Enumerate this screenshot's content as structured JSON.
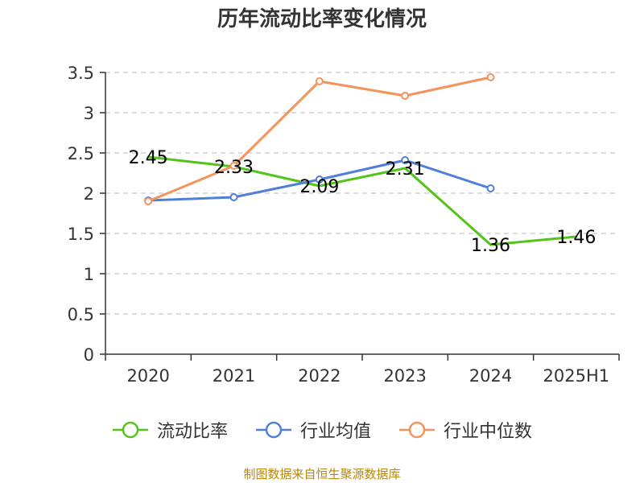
{
  "chart_data": {
    "type": "line",
    "title": "历年流动比率变化情况",
    "categories": [
      "2020",
      "2021",
      "2022",
      "2023",
      "2024",
      "2025H1"
    ],
    "ylim": [
      0,
      3.5
    ],
    "yticks": [
      "0",
      "0.5",
      "1",
      "1.5",
      "2",
      "2.5",
      "3",
      "3.5"
    ],
    "ytick_values": [
      0,
      0.5,
      1,
      1.5,
      2,
      2.5,
      3,
      3.5
    ],
    "grid": true,
    "legend_position": "bottom",
    "series": [
      {
        "name": "流动比率",
        "color": "#52c41a",
        "values": [
          2.45,
          2.33,
          2.09,
          2.31,
          1.36,
          1.46
        ],
        "labels": [
          "2.45",
          "2.33",
          "2.09",
          "2.31",
          "1.36",
          "1.46"
        ],
        "show_markers": false
      },
      {
        "name": "行业均值",
        "color": "#4f7fdb",
        "values": [
          1.91,
          1.95,
          2.17,
          2.41,
          2.06,
          null
        ],
        "show_markers": true
      },
      {
        "name": "行业中位数",
        "color": "#f4935a",
        "values": [
          1.9,
          2.34,
          3.39,
          3.21,
          3.44,
          null
        ],
        "show_markers": true
      }
    ]
  },
  "source_note": "制图数据来自恒生聚源数据库"
}
